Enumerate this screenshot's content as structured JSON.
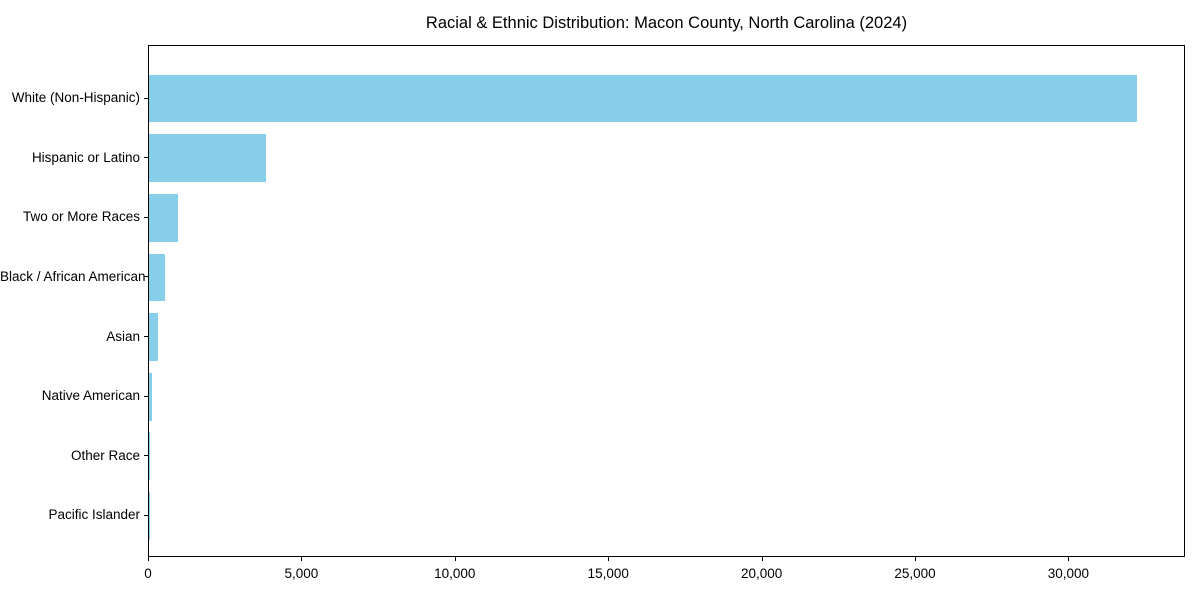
{
  "title": "Racial & Ethnic Distribution: Macon County, North Carolina (2024)",
  "colors": {
    "bar": "#87CEEB",
    "spine": "#000000",
    "text": "#000000",
    "background": "#FFFFFF"
  },
  "chart_data": {
    "type": "bar",
    "orientation": "horizontal",
    "title": "Racial & Ethnic Distribution: Macon County, North Carolina (2024)",
    "xlabel": "",
    "ylabel": "",
    "categories": [
      "White (Non-Hispanic)",
      "Hispanic or Latino",
      "Two or More Races",
      "Black / African American",
      "Asian",
      "Native American",
      "Other Race",
      "Pacific Islander"
    ],
    "values": [
      32200,
      3820,
      940,
      520,
      280,
      100,
      40,
      10
    ],
    "xlim": [
      0,
      33800
    ],
    "xticks": [
      0,
      5000,
      10000,
      15000,
      20000,
      25000,
      30000
    ],
    "xtick_labels": [
      "0",
      "5,000",
      "10,000",
      "15,000",
      "20,000",
      "25,000",
      "30,000"
    ],
    "bar_color": "#87CEEB",
    "grid": false,
    "legend": null
  }
}
